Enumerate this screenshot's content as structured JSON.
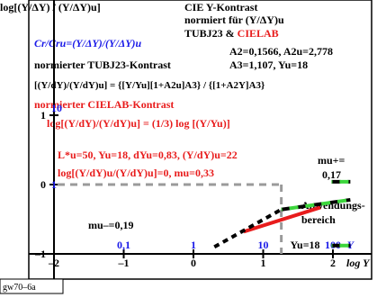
{
  "chart_data": {
    "type": "line",
    "title_lines": [
      "CIE Y-Kontrast",
      "normiert für (Y/ΔY)u",
      "TUBJ23 & ",
      "CIELAB"
    ],
    "ylabel": "log[(Y/ΔY) / (Y/ΔY)u]",
    "xlabel": "log Y",
    "xlim": [
      -2,
      2.4
    ],
    "ylim": [
      -1,
      2
    ],
    "x_ticks": [
      -2,
      -1,
      0,
      1,
      2
    ],
    "x_tick_labels": [
      "–2",
      "–1",
      "0",
      "1",
      "2"
    ],
    "y_ticks": [
      -1,
      0,
      1
    ],
    "y_tick_labels": [
      "–1",
      "0",
      "1"
    ],
    "upper_y_labels": {
      "v1": "10",
      "v0": "1"
    },
    "lum_labels": [
      {
        "x": -1,
        "text": "0,1"
      },
      {
        "x": 0,
        "text": "1"
      },
      {
        "x": 1,
        "text": "10"
      },
      {
        "x": 1.6,
        "text": "Yu=18"
      },
      {
        "x": 2,
        "text": "100"
      },
      {
        "x": 2.25,
        "text": "Y"
      }
    ],
    "annotations": {
      "ratio": "Cr/Cru=(Y/ΔY)/(Y/ΔY)u",
      "params": "A2=0,1566, A2u=2,778",
      "params2": "A3=1,107, Yu=18",
      "tubj_title": "normierter TUBJ23-Kontrast",
      "formula": "[(Y/dY)/(Y/dY)u] = {[Y/Yu][1+A2u]A3} / {[1+A2Y]A3}",
      "cielab_title": "normierter CIELAB-Kontrast",
      "cielab_formula": "log[(Y/dY)/(Y/dY)u] = (1/3) log [(Y/Yu)]",
      "l_params": "L*u=50, Yu=18, dYu=0,83, (Y/dY)u=22",
      "log_eq": "log[(Y/dY)u/(Y/dY)u]=0, mu=0,33",
      "mu_plus": "mu+=",
      "mu_plus_val": "0,17",
      "mu_minus": "mu–=0,19",
      "range": "Anwendungs-",
      "range2": "bereich"
    },
    "series": [
      {
        "color": "#e81c1c",
        "x": [
          0.72,
          1.82
        ],
        "y": [
          -0.68,
          -0.33
        ]
      },
      {
        "color": "#000000",
        "x": [
          0.3,
          1.26
        ],
        "y": [
          -0.9,
          -0.36
        ]
      },
      {
        "color": "#000000",
        "x": [
          1.26,
          2.25
        ],
        "y": [
          -0.36,
          -0.22
        ]
      },
      {
        "color": "#3cd63c",
        "x": [
          1.26,
          2.25
        ],
        "y": [
          -0.36,
          -0.22
        ]
      },
      {
        "color": "#000000",
        "x": [
          1.98,
          2.25
        ],
        "y": [
          0.04,
          0.04
        ]
      },
      {
        "color": "#3cd63c",
        "x": [
          1.98,
          2.25
        ],
        "y": [
          0.04,
          0.04
        ]
      },
      {
        "color": "#000000",
        "x": [
          1.98,
          2.25
        ],
        "y": [
          -0.88,
          -0.88
        ]
      },
      {
        "color": "#3cd63c",
        "x": [
          1.98,
          2.25
        ],
        "y": [
          -0.88,
          -0.88
        ]
      }
    ],
    "reference": {
      "x": 1.26,
      "y": 0
    },
    "footer": "gw70–6a"
  }
}
